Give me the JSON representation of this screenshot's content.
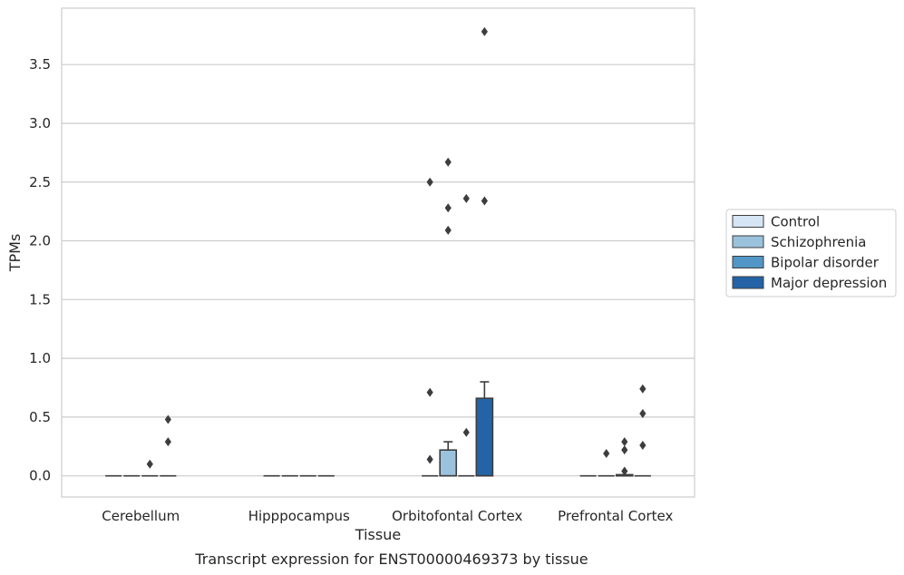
{
  "caption": "Transcript expression for ENST00000469373 by tissue",
  "chart_data": {
    "type": "box",
    "title": "",
    "xlabel": "Tissue",
    "ylabel": "TPMs",
    "ylim": [
      -0.18,
      3.98
    ],
    "yticks": [
      0.0,
      0.5,
      1.0,
      1.5,
      2.0,
      2.5,
      3.0,
      3.5
    ],
    "ytick_labels": [
      "0.0",
      "0.5",
      "1.0",
      "1.5",
      "2.0",
      "2.5",
      "3.0",
      "3.5"
    ],
    "grid": "horizontal",
    "legend_position": "center-right outside",
    "categories": [
      "Cerebellum",
      "Hipppocampus",
      "Orbitofontal Cortex",
      "Prefrontal Cortex"
    ],
    "series": [
      {
        "name": "Control",
        "color": "#d6e5f4",
        "boxes": [
          {
            "q1": 0,
            "median": 0,
            "q3": 0,
            "whisker_low": 0,
            "whisker_high": 0,
            "outliers": []
          },
          {
            "q1": 0,
            "median": 0,
            "q3": 0,
            "whisker_low": 0,
            "whisker_high": 0,
            "outliers": []
          },
          {
            "q1": 0,
            "median": 0,
            "q3": 0,
            "whisker_low": 0,
            "whisker_high": 0,
            "outliers": [
              2.5,
              0.71,
              0.14
            ]
          },
          {
            "q1": 0,
            "median": 0,
            "q3": 0,
            "whisker_low": 0,
            "whisker_high": 0,
            "outliers": []
          }
        ]
      },
      {
        "name": "Schizophrenia",
        "color": "#9ac2dc",
        "boxes": [
          {
            "q1": 0,
            "median": 0,
            "q3": 0,
            "whisker_low": 0,
            "whisker_high": 0,
            "outliers": []
          },
          {
            "q1": 0,
            "median": 0,
            "q3": 0,
            "whisker_low": 0,
            "whisker_high": 0,
            "outliers": []
          },
          {
            "q1": 0,
            "median": 0,
            "q3": 0.22,
            "whisker_low": 0,
            "whisker_high": 0.29,
            "outliers": [
              2.67,
              2.28,
              2.09
            ]
          },
          {
            "q1": 0,
            "median": 0,
            "q3": 0,
            "whisker_low": 0,
            "whisker_high": 0,
            "outliers": [
              0.19
            ]
          }
        ]
      },
      {
        "name": "Bipolar disorder",
        "color": "#5196c6",
        "boxes": [
          {
            "q1": 0,
            "median": 0,
            "q3": 0,
            "whisker_low": 0,
            "whisker_high": 0,
            "outliers": [
              0.1
            ]
          },
          {
            "q1": 0,
            "median": 0,
            "q3": 0,
            "whisker_low": 0,
            "whisker_high": 0,
            "outliers": []
          },
          {
            "q1": 0,
            "median": 0,
            "q3": 0,
            "whisker_low": 0,
            "whisker_high": 0,
            "outliers": [
              2.36,
              0.37
            ]
          },
          {
            "q1": 0,
            "median": 0,
            "q3": 0.01,
            "whisker_low": 0,
            "whisker_high": 0.01,
            "outliers": [
              0.29,
              0.22,
              0.04
            ]
          }
        ]
      },
      {
        "name": "Major depression",
        "color": "#2464a6",
        "boxes": [
          {
            "q1": 0,
            "median": 0,
            "q3": 0,
            "whisker_low": 0,
            "whisker_high": 0,
            "outliers": [
              0.48,
              0.29
            ]
          },
          {
            "q1": 0,
            "median": 0,
            "q3": 0,
            "whisker_low": 0,
            "whisker_high": 0,
            "outliers": []
          },
          {
            "q1": 0,
            "median": 0,
            "q3": 0.66,
            "whisker_low": 0,
            "whisker_high": 0.8,
            "outliers": [
              3.78,
              2.34
            ]
          },
          {
            "q1": 0,
            "median": 0,
            "q3": 0,
            "whisker_low": 0,
            "whisker_high": 0,
            "outliers": [
              0.74,
              0.53,
              0.26
            ]
          }
        ]
      }
    ]
  }
}
